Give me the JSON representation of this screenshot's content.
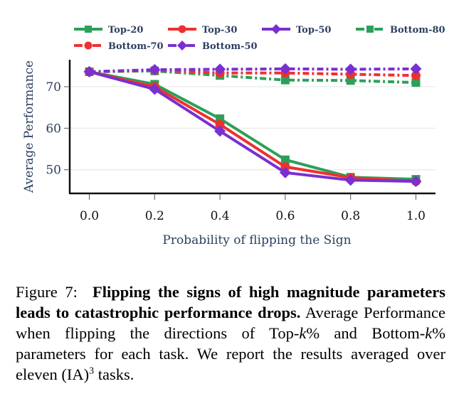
{
  "chart_data": {
    "type": "line",
    "title": "",
    "xlabel": "Probability of flipping the Sign",
    "ylabel": "Average Performance",
    "x": [
      0.0,
      0.2,
      0.4,
      0.6,
      0.8,
      1.0
    ],
    "x_tick_labels": [
      "0.0",
      "0.2",
      "0.4",
      "0.6",
      "0.8",
      "1.0"
    ],
    "y_ticks": [
      50,
      60,
      70
    ],
    "y_tick_labels": [
      "50",
      "60",
      "70"
    ],
    "xlim": [
      -0.06,
      1.06
    ],
    "ylim": [
      44.3,
      76.5
    ],
    "grid": "horizontal",
    "legend_position": "top",
    "series": [
      {
        "name": "Top-20",
        "color": "#2ca05a",
        "dash": "solid",
        "marker": "square",
        "values": [
          73.6,
          70.6,
          62.3,
          52.4,
          48.2,
          47.7
        ]
      },
      {
        "name": "Top-30",
        "color": "#ef3030",
        "dash": "solid",
        "marker": "circle",
        "values": [
          73.6,
          70.0,
          60.9,
          50.7,
          48.1,
          47.2
        ]
      },
      {
        "name": "Top-50",
        "color": "#7a2fd0",
        "dash": "solid",
        "marker": "diamond",
        "values": [
          73.6,
          69.4,
          59.3,
          49.3,
          47.5,
          47.2
        ]
      },
      {
        "name": "Bottom-80",
        "color": "#2ca05a",
        "dash": "dashdot",
        "marker": "square",
        "values": [
          73.6,
          73.8,
          72.7,
          71.6,
          71.5,
          71.0
        ]
      },
      {
        "name": "Bottom-70",
        "color": "#ef3030",
        "dash": "dashdot",
        "marker": "circle",
        "values": [
          73.6,
          74.0,
          73.3,
          73.3,
          73.0,
          72.7
        ]
      },
      {
        "name": "Bottom-50",
        "color": "#7a2fd0",
        "dash": "dashdot",
        "marker": "diamond",
        "values": [
          73.6,
          74.1,
          74.2,
          74.3,
          74.2,
          74.3
        ]
      }
    ]
  },
  "caption": {
    "label": "Figure 7:",
    "bold": "Flipping the signs of high magnitude parameters leads to catastrophic performance drops.",
    "line3": "Average Performance when flipping the directions of",
    "line4_a": "Top-",
    "k": "k",
    "pct": "%",
    "line4_b": " and Bottom-",
    "line4_c": " parameters for each task. We",
    "line5_a": "report the results averaged over eleven (IA)",
    "sup": "3",
    "line5_b": " tasks."
  }
}
